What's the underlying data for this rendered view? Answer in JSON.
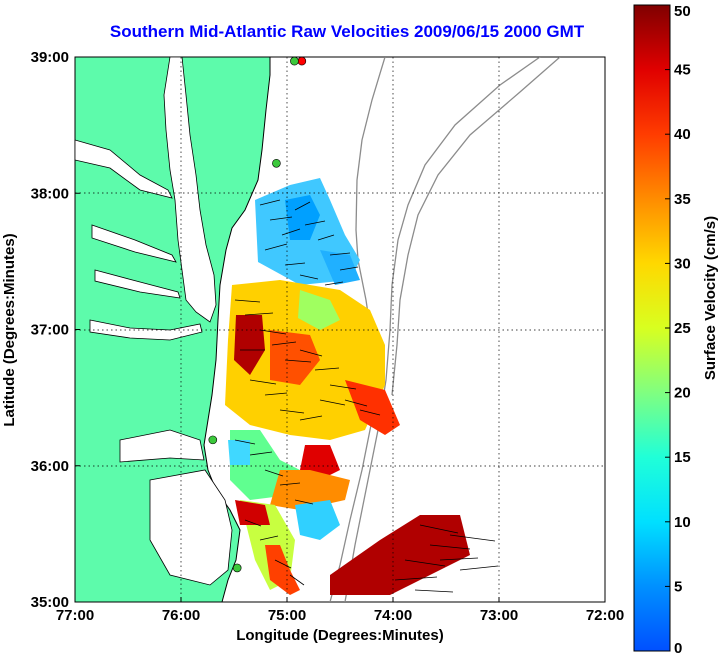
{
  "title": "Southern Mid-Atlantic Raw Velocities 2009/06/15 2000 GMT",
  "map": {
    "xlabel": "Longitude (Degrees:Minutes)",
    "ylabel": "Latitude (Degrees:Minutes)",
    "lon_ticks": [
      "77:00",
      "76:00",
      "75:00",
      "74:00",
      "73:00",
      "72:00"
    ],
    "lat_ticks": [
      "39:00",
      "38:00",
      "37:00",
      "36:00",
      "35:00"
    ],
    "lon_range": [
      -77,
      -72
    ],
    "lat_range": [
      35,
      39
    ],
    "grid": true,
    "land_color": "#5dfbab",
    "coastline_color": "#000000",
    "bathymetry_color": "#8c8c8c"
  },
  "colorbar": {
    "label": "Surface Velocity (cm/s)",
    "ticks": [
      "50",
      "45",
      "40",
      "35",
      "30",
      "25",
      "20",
      "15",
      "10",
      "5",
      "0"
    ],
    "range": [
      0,
      50
    ],
    "colormap": "jet"
  },
  "stations": [
    {
      "lon": -74.86,
      "lat": 38.97,
      "color": "#ff0000"
    },
    {
      "lon": -74.93,
      "lat": 38.97,
      "color": "#3cc83c"
    },
    {
      "lon": -75.1,
      "lat": 38.22,
      "color": "#3cc83c"
    },
    {
      "lon": -75.7,
      "lat": 36.19,
      "color": "#3cc83c"
    },
    {
      "lon": -75.47,
      "lat": 35.25,
      "color": "#3cc83c"
    }
  ]
}
